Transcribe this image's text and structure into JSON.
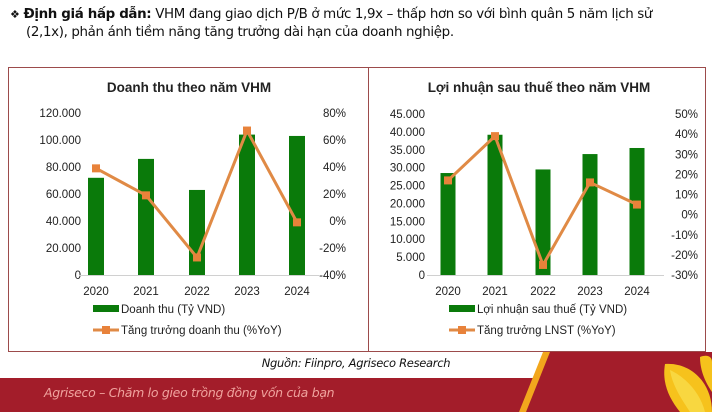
{
  "intro": {
    "bullet": "❖",
    "bold_label": "Định giá hấp dẫn:",
    "line1_rest": " VHM đang giao dịch P/B ở mức 1,9x – thấp hơn so với bình quân 5 năm lịch sử",
    "line2": "(2,1x), phản ánh tiềm năng tăng trưởng dài hạn của doanh nghiệp."
  },
  "colors": {
    "bar": "#0a7a0a",
    "line": "#e08a45",
    "marker": "#e8823a",
    "frame_border": "#9c4b4b",
    "footer_red": "#a31d2a",
    "footer_stripe": "#f2a71d",
    "axis_line": "#d0d0d0"
  },
  "chart_data": [
    {
      "type": "bar",
      "title": "Doanh thu theo năm VHM",
      "categories": [
        "2020",
        "2021",
        "2022",
        "2023",
        "2024"
      ],
      "series": [
        {
          "name": "Doanh thu (Tỷ VND)",
          "type": "bar",
          "axis": "left",
          "values": [
            72000,
            86000,
            63000,
            104000,
            103000
          ]
        },
        {
          "name": "Tăng trưởng doanh thu (%YoY)",
          "type": "line",
          "axis": "right",
          "values": [
            39,
            19,
            -27,
            67,
            -1
          ]
        }
      ],
      "y_left": {
        "min": 0,
        "max": 120000,
        "ticks": [
          "0",
          "20.000",
          "40.000",
          "60.000",
          "80.000",
          "100.000",
          "120.000"
        ]
      },
      "y_right": {
        "min": -40,
        "max": 80,
        "ticks": [
          "-40%",
          "-20%",
          "0%",
          "20%",
          "40%",
          "60%",
          "80%"
        ]
      },
      "xlabel": "",
      "ylabel": "",
      "grid": false,
      "legend_position": "bottom"
    },
    {
      "type": "bar",
      "title": "Lợi nhuận sau thuế theo năm VHM",
      "categories": [
        "2020",
        "2021",
        "2022",
        "2023",
        "2024"
      ],
      "series": [
        {
          "name": "Lợi nhuận sau thuế (Tỷ VND)",
          "type": "bar",
          "axis": "left",
          "values": [
            28500,
            39200,
            29500,
            33800,
            35500
          ]
        },
        {
          "name": "Tăng trưởng LNST (%YoY)",
          "type": "line",
          "axis": "right",
          "values": [
            17,
            39,
            -25,
            16,
            5
          ]
        }
      ],
      "y_left": {
        "min": 0,
        "max": 45000,
        "ticks": [
          "0",
          "5.000",
          "10.000",
          "15.000",
          "20.000",
          "25.000",
          "30.000",
          "35.000",
          "40.000",
          "45.000"
        ]
      },
      "y_right": {
        "min": -30,
        "max": 50,
        "ticks": [
          "-30%",
          "-20%",
          "-10%",
          "0%",
          "10%",
          "20%",
          "30%",
          "40%",
          "50%"
        ]
      },
      "xlabel": "",
      "ylabel": "",
      "grid": false,
      "legend_position": "bottom"
    }
  ],
  "source": "Nguồn: Fiinpro, Agriseco Research",
  "footer": {
    "slogan": "Agriseco – Chăm lo gieo trồng đồng vốn của bạn"
  }
}
